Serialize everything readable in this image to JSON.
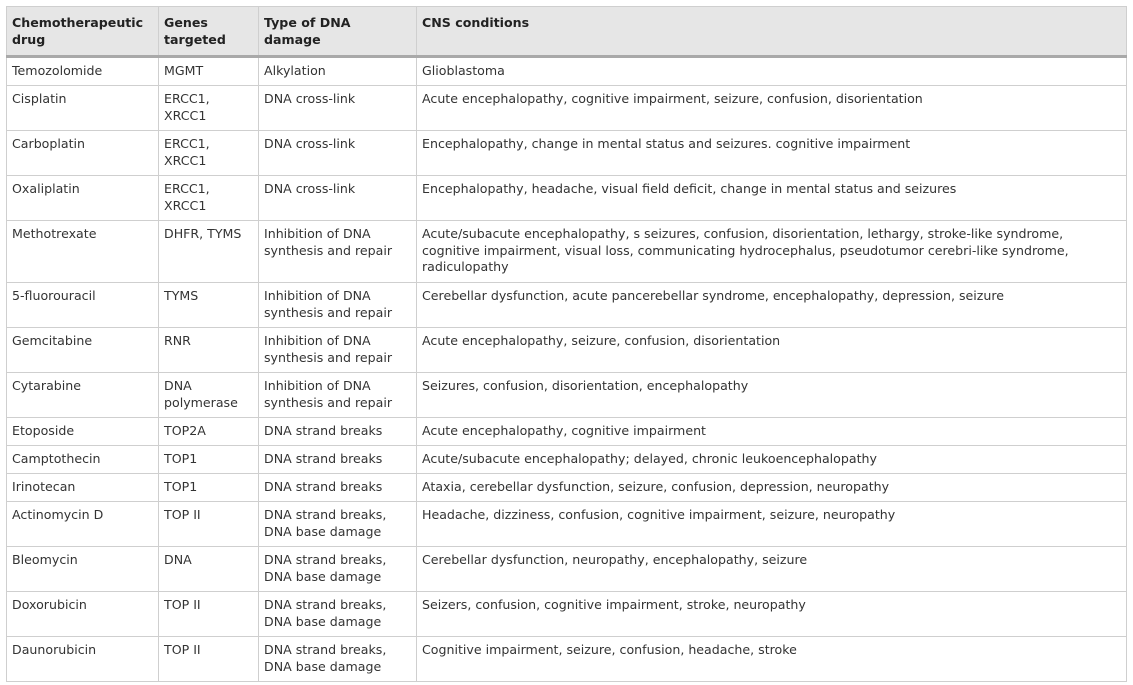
{
  "table": {
    "headers": [
      "Chemotherapeutic drug",
      "Genes targeted",
      "Type of DNA damage",
      "CNS conditions"
    ],
    "rows": [
      [
        "Temozolomide",
        "MGMT",
        "Alkylation",
        "Glioblastoma"
      ],
      [
        "Cisplatin",
        "ERCC1, XRCC1",
        "DNA cross-link",
        "Acute encephalopathy, cognitive impairment, seizure, confusion, disorientation"
      ],
      [
        "Carboplatin",
        "ERCC1, XRCC1",
        "DNA cross-link",
        "Encephalopathy, change in mental status and seizures. cognitive impairment"
      ],
      [
        "Oxaliplatin",
        "ERCC1, XRCC1",
        "DNA cross-link",
        "Encephalopathy, headache, visual field deficit, change in mental status and seizures"
      ],
      [
        "Methotrexate",
        "DHFR, TYMS",
        "Inhibition of DNA synthesis and repair",
        "Acute/subacute encephalopathy, s seizures, confusion, disorientation, lethargy, stroke-like syndrome, cognitive impairment, visual loss, communicating hydrocephalus, pseudotumor cerebri-like syndrome, radiculopathy"
      ],
      [
        "5-fluorouracil",
        "TYMS",
        "Inhibition of DNA synthesis and repair",
        "Cerebellar dysfunction, acute pancerebellar syndrome, encephalopathy, depression, seizure"
      ],
      [
        "Gemcitabine",
        "RNR",
        "Inhibition of DNA synthesis and repair",
        "Acute encephalopathy, seizure, confusion, disorientation"
      ],
      [
        "Cytarabine",
        "DNA polymerase",
        "Inhibition of DNA synthesis and repair",
        "Seizures, confusion, disorientation, encephalopathy"
      ],
      [
        "Etoposide",
        "TOP2A",
        "DNA strand breaks",
        "Acute encephalopathy, cognitive impairment"
      ],
      [
        "Camptothecin",
        "TOP1",
        "DNA strand breaks",
        "Acute/subacute encephalopathy; delayed, chronic leukoencephalopathy"
      ],
      [
        "Irinotecan",
        "TOP1",
        "DNA strand breaks",
        "Ataxia, cerebellar dysfunction, seizure, confusion, depression, neuropathy"
      ],
      [
        "Actinomycin D",
        "TOP II",
        "DNA strand breaks, DNA base damage",
        "Headache, dizziness, confusion, cognitive impairment, seizure, neuropathy"
      ],
      [
        "Bleomycin",
        "DNA",
        "DNA strand breaks, DNA base damage",
        "Cerebellar dysfunction, neuropathy, encephalopathy, seizure"
      ],
      [
        "Doxorubicin",
        "TOP II",
        "DNA strand breaks, DNA base damage",
        "Seizers, confusion, cognitive impairment, stroke, neuropathy"
      ],
      [
        "Daunorubicin",
        "TOP II",
        "DNA strand breaks, DNA base damage",
        "Cognitive impairment, seizure, confusion, headache, stroke"
      ]
    ]
  }
}
